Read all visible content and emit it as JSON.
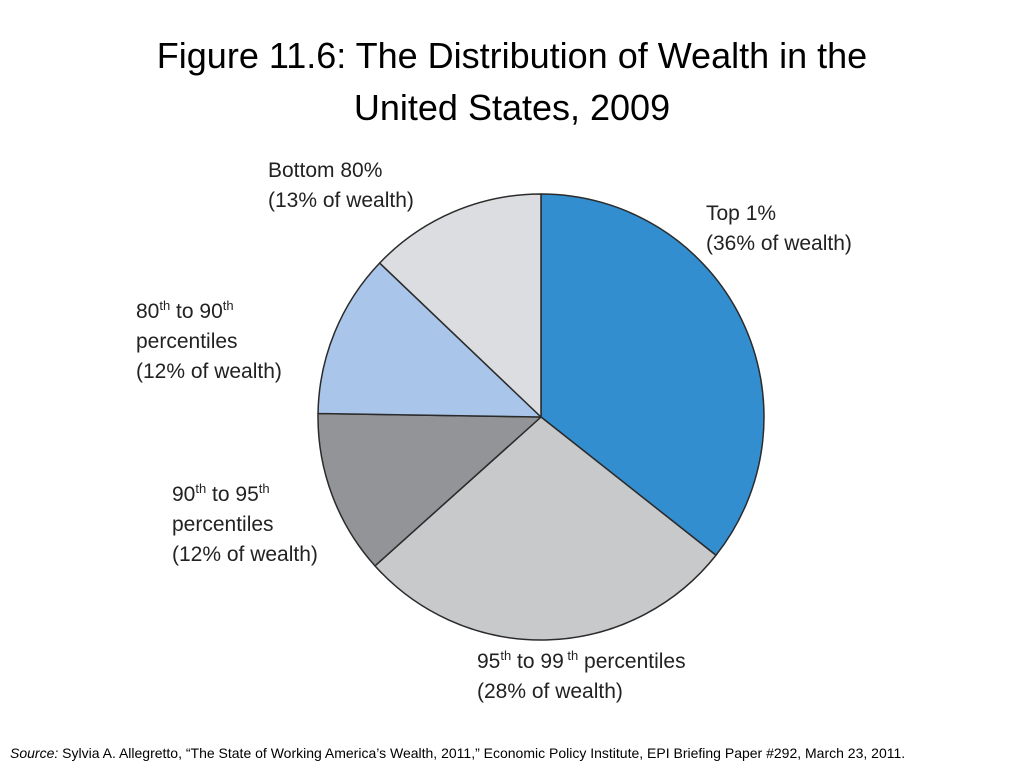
{
  "chart_data": {
    "type": "pie",
    "title": [
      "Figure 11.6: The Distribution of Wealth in the",
      "United States, 2009"
    ],
    "slices": [
      {
        "id": "top-1",
        "value": 36,
        "color": "#338ed0",
        "label_lines": [
          [
            {
              "t": "Top 1%"
            }
          ],
          [
            {
              "t": "(36% of wealth)"
            }
          ]
        ]
      },
      {
        "id": "95-99",
        "value": 28,
        "color": "#c8c9cb",
        "label_lines": [
          [
            {
              "t": "95"
            },
            {
              "t": "th",
              "sup": true
            },
            {
              "t": " to 99"
            },
            {
              "t": " th",
              "sup": true
            },
            {
              "t": " percentiles"
            }
          ],
          [
            {
              "t": "(28% of wealth)"
            }
          ]
        ]
      },
      {
        "id": "90-95",
        "value": 12,
        "color": "#939497",
        "label_lines": [
          [
            {
              "t": "90"
            },
            {
              "t": "th",
              "sup": true
            },
            {
              "t": " to 95"
            },
            {
              "t": "th",
              "sup": true
            }
          ],
          [
            {
              "t": "percentiles"
            }
          ],
          [
            {
              "t": "(12% of wealth)"
            }
          ]
        ]
      },
      {
        "id": "80-90",
        "value": 12,
        "color": "#a9c5e9",
        "label_lines": [
          [
            {
              "t": "80"
            },
            {
              "t": "th",
              "sup": true
            },
            {
              "t": " to 90"
            },
            {
              "t": "th",
              "sup": true
            }
          ],
          [
            {
              "t": "percentiles"
            }
          ],
          [
            {
              "t": "(12% of wealth)"
            }
          ]
        ]
      },
      {
        "id": "bottom-80",
        "value": 13,
        "color": "#dcdde0",
        "label_lines": [
          [
            {
              "t": "Bottom 80%"
            }
          ],
          [
            {
              "t": "(13% of wealth)"
            }
          ]
        ]
      }
    ],
    "start": "12 o'clock",
    "direction": "clockwise",
    "legend": "none",
    "grid": false
  },
  "source": {
    "prefix": "Source:",
    "text": " Sylvia A. Allegretto, “The State of Working America’s Wealth, 2011,” Economic Policy Institute, EPI Briefing Paper #292, March 23, 2011."
  }
}
